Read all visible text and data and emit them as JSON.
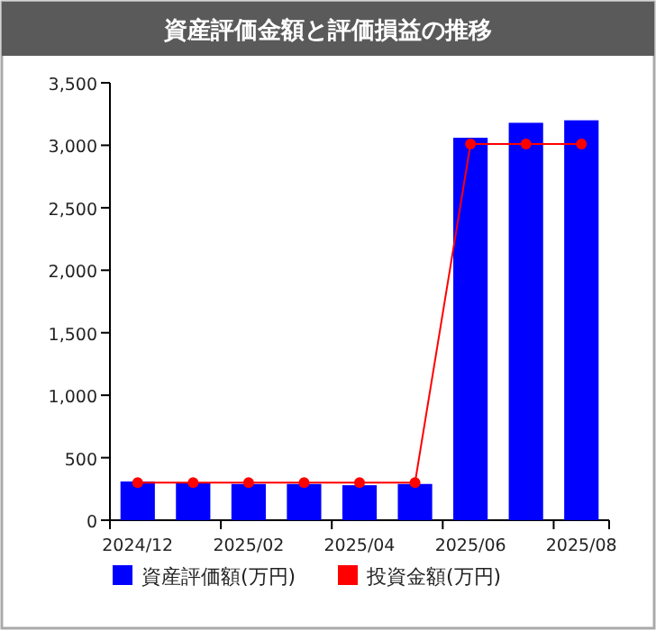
{
  "chart_data": {
    "type": "bar",
    "title": "資産評価金額と評価損益の推移",
    "categories": [
      "2024/12",
      null,
      "2025/02",
      null,
      "2025/04",
      null,
      "2025/06",
      null,
      "2025/08"
    ],
    "series": [
      {
        "name": "資産評価額(万円)",
        "color": "#0000ff",
        "values": [
          310,
          300,
          290,
          290,
          280,
          290,
          3060,
          3180,
          3200
        ]
      },
      {
        "name": "投資金額(万円)",
        "type": "line",
        "color": "#ff0000",
        "marker": "circle",
        "values": [
          300,
          300,
          300,
          300,
          300,
          300,
          3010,
          3010,
          3010
        ]
      }
    ],
    "ylim": [
      0,
      3500
    ],
    "yticks": [
      {
        "value": 0,
        "label": "0"
      },
      {
        "value": 500,
        "label": "500"
      },
      {
        "value": 1000,
        "label": "1,000"
      },
      {
        "value": 1500,
        "label": "1,500"
      },
      {
        "value": 2000,
        "label": "2,000"
      },
      {
        "value": 2500,
        "label": "2,500"
      },
      {
        "value": 3000,
        "label": "3,000"
      },
      {
        "value": 3500,
        "label": "3,500"
      }
    ],
    "grid": false,
    "legend": "bottom"
  }
}
